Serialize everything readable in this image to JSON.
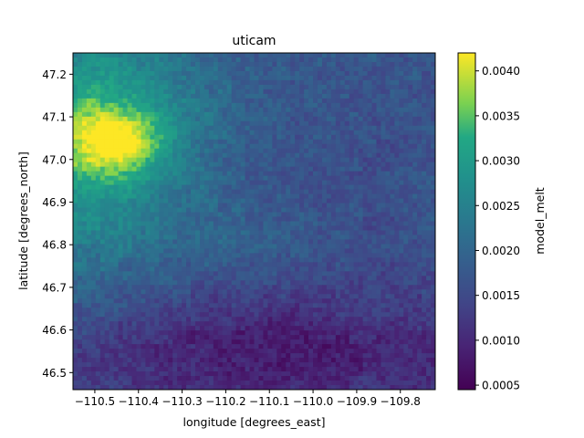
{
  "chart_data": {
    "type": "heatmap",
    "title": "uticam",
    "xlabel": "longitude [degrees_east]",
    "ylabel": "latitude [degrees_north]",
    "colorbar_label": "model_melt",
    "colormap": "viridis",
    "xlim": [
      -110.55,
      -109.72
    ],
    "ylim": [
      46.46,
      47.25
    ],
    "clim": [
      0.00045,
      0.0042
    ],
    "x_ticks": [
      {
        "value": -110.5,
        "label": "−110.5"
      },
      {
        "value": -110.4,
        "label": "−110.4"
      },
      {
        "value": -110.3,
        "label": "−110.3"
      },
      {
        "value": -110.2,
        "label": "−110.2"
      },
      {
        "value": -110.1,
        "label": "−110.1"
      },
      {
        "value": -110.0,
        "label": "−110.0"
      },
      {
        "value": -109.9,
        "label": "−109.9"
      },
      {
        "value": -109.8,
        "label": "−109.8"
      }
    ],
    "y_ticks": [
      {
        "value": 46.5,
        "label": "46.5"
      },
      {
        "value": 46.6,
        "label": "46.6"
      },
      {
        "value": 46.7,
        "label": "46.7"
      },
      {
        "value": 46.8,
        "label": "46.8"
      },
      {
        "value": 46.9,
        "label": "46.9"
      },
      {
        "value": 47.0,
        "label": "47.0"
      },
      {
        "value": 47.1,
        "label": "47.1"
      },
      {
        "value": 47.2,
        "label": "47.2"
      }
    ],
    "colorbar_ticks": [
      {
        "value": 0.0005,
        "label": "0.0005"
      },
      {
        "value": 0.001,
        "label": "0.0010"
      },
      {
        "value": 0.0015,
        "label": "0.0015"
      },
      {
        "value": 0.002,
        "label": "0.0020"
      },
      {
        "value": 0.0025,
        "label": "0.0025"
      },
      {
        "value": 0.003,
        "label": "0.0030"
      },
      {
        "value": 0.0035,
        "label": "0.0035"
      },
      {
        "value": 0.004,
        "label": "0.0040"
      }
    ],
    "grid": false
  }
}
